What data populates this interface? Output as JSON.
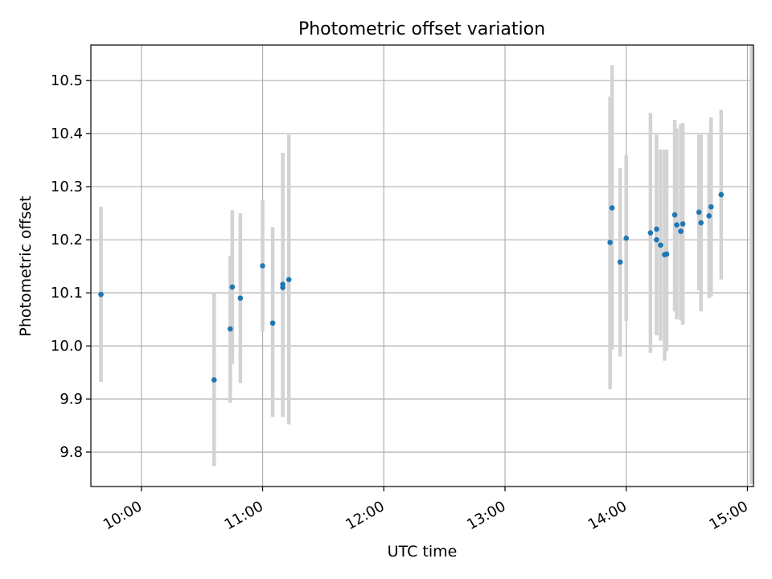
{
  "chart_data": {
    "type": "scatter",
    "title": "Photometric offset variation",
    "xlabel": "UTC time",
    "ylabel": "Photometric offset",
    "x_ticks": [
      "10:00",
      "11:00",
      "12:00",
      "13:00",
      "14:00",
      "15:00"
    ],
    "y_ticks": [
      "9.8",
      "9.9",
      "10.0",
      "10.1",
      "10.2",
      "10.3",
      "10.4",
      "10.5"
    ],
    "ylim": [
      9.735,
      10.567
    ],
    "xlim": [
      "09:35",
      "15:03"
    ],
    "grid": true,
    "colors": {
      "point": "#1f77b4",
      "errorbar": "#d3d3d3",
      "grid": "#b0b0b0"
    },
    "points": [
      {
        "x": "09:40",
        "y": 10.097,
        "ylo": 9.932,
        "yhi": 10.262
      },
      {
        "x": "10:36",
        "y": 9.936,
        "ylo": 9.773,
        "yhi": 10.1
      },
      {
        "x": "10:44",
        "y": 10.032,
        "ylo": 9.893,
        "yhi": 10.17
      },
      {
        "x": "10:45",
        "y": 10.111,
        "ylo": 9.966,
        "yhi": 10.256
      },
      {
        "x": "10:49",
        "y": 10.09,
        "ylo": 9.93,
        "yhi": 10.25
      },
      {
        "x": "11:00",
        "y": 10.151,
        "ylo": 10.027,
        "yhi": 10.275
      },
      {
        "x": "11:05",
        "y": 10.043,
        "ylo": 9.866,
        "yhi": 10.224
      },
      {
        "x": "11:10",
        "y": 10.11,
        "ylo": 9.866,
        "yhi": 10.364
      },
      {
        "x": "11:10",
        "y": 10.116,
        "ylo": 9.866,
        "yhi": 10.364
      },
      {
        "x": "11:13",
        "y": 10.125,
        "ylo": 9.852,
        "yhi": 10.398
      },
      {
        "x": "13:52",
        "y": 10.195,
        "ylo": 9.918,
        "yhi": 10.47
      },
      {
        "x": "13:53",
        "y": 10.26,
        "ylo": 9.993,
        "yhi": 10.529
      },
      {
        "x": "13:57",
        "y": 10.158,
        "ylo": 9.98,
        "yhi": 10.335
      },
      {
        "x": "14:00",
        "y": 10.203,
        "ylo": 10.047,
        "yhi": 10.359
      },
      {
        "x": "14:12",
        "y": 10.213,
        "ylo": 9.987,
        "yhi": 10.439
      },
      {
        "x": "14:15",
        "y": 10.2,
        "ylo": 10.02,
        "yhi": 10.398
      },
      {
        "x": "14:15",
        "y": 10.22,
        "ylo": 10.02,
        "yhi": 10.398
      },
      {
        "x": "14:17",
        "y": 10.19,
        "ylo": 10.01,
        "yhi": 10.37
      },
      {
        "x": "14:19",
        "y": 10.172,
        "ylo": 9.972,
        "yhi": 10.37
      },
      {
        "x": "14:20",
        "y": 10.173,
        "ylo": 9.99,
        "yhi": 10.37
      },
      {
        "x": "14:24",
        "y": 10.247,
        "ylo": 10.065,
        "yhi": 10.426
      },
      {
        "x": "14:25",
        "y": 10.228,
        "ylo": 10.05,
        "yhi": 10.41
      },
      {
        "x": "14:27",
        "y": 10.216,
        "ylo": 10.048,
        "yhi": 10.418
      },
      {
        "x": "14:28",
        "y": 10.23,
        "ylo": 10.04,
        "yhi": 10.42
      },
      {
        "x": "14:36",
        "y": 10.252,
        "ylo": 10.105,
        "yhi": 10.398
      },
      {
        "x": "14:37",
        "y": 10.232,
        "ylo": 10.065,
        "yhi": 10.398
      },
      {
        "x": "14:41",
        "y": 10.245,
        "ylo": 10.09,
        "yhi": 10.4
      },
      {
        "x": "14:42",
        "y": 10.262,
        "ylo": 10.093,
        "yhi": 10.431
      },
      {
        "x": "14:47",
        "y": 10.285,
        "ylo": 10.125,
        "yhi": 10.445
      },
      {
        "x": "15:02",
        "y": null,
        "ylo": 9.74,
        "yhi": 10.567
      }
    ]
  }
}
